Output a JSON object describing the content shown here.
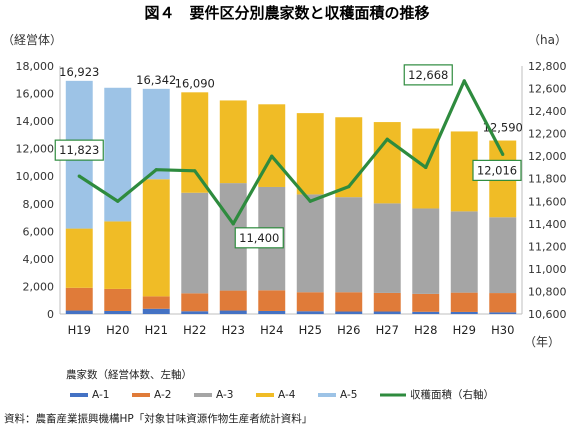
{
  "chart_data": {
    "type": "bar+line",
    "title": "図４　要件区分別農家数と収穫面積の推移",
    "y_left_unit": "（経営体）",
    "y_right_unit": "（ha）",
    "x_unit": "（年）",
    "legend_title": "農家数（経営体数、左軸）",
    "source": "資料：農畜産業振興機構HP「対象甘味資源作物生産者統計資料」",
    "categories": [
      "H19",
      "H20",
      "H21",
      "H22",
      "H23",
      "H24",
      "H25",
      "H26",
      "H27",
      "H28",
      "H29",
      "H30"
    ],
    "y_left": {
      "min": 0,
      "max": 18000,
      "step": 2000
    },
    "y_right": {
      "min": 10600,
      "max": 12800,
      "step": 200
    },
    "series": [
      {
        "name": "A-1",
        "color": "#4472c4",
        "values": [
          250,
          220,
          380,
          200,
          250,
          220,
          200,
          180,
          180,
          160,
          150,
          120
        ]
      },
      {
        "name": "A-2",
        "color": "#e07b39",
        "values": [
          1650,
          1600,
          900,
          1300,
          1450,
          1500,
          1380,
          1400,
          1350,
          1300,
          1400,
          1400
        ]
      },
      {
        "name": "A-3",
        "color": "#a5a5a5",
        "values": [
          0,
          0,
          0,
          7300,
          7800,
          7500,
          7100,
          6900,
          6500,
          6200,
          5900,
          5500
        ]
      },
      {
        "name": "A-4",
        "color": "#f0bc26",
        "values": [
          4300,
          4900,
          8500,
          7290,
          6000,
          6000,
          5900,
          5800,
          5900,
          5800,
          5800,
          5570
        ]
      },
      {
        "name": "A-5",
        "color": "#9dc3e6",
        "values": [
          10723,
          9700,
          6562,
          0,
          0,
          0,
          0,
          0,
          0,
          0,
          0,
          0
        ]
      }
    ],
    "bar_labels": [
      {
        "index": 0,
        "text": "16,923"
      },
      {
        "index": 2,
        "text": "16,342"
      },
      {
        "index": 3,
        "text": "16,090"
      },
      {
        "index": 11,
        "text": "12,590"
      }
    ],
    "line": {
      "name": "収穫面積（右軸）",
      "color": "#2e8b3e",
      "values": [
        11823,
        11600,
        11880,
        11870,
        11400,
        12000,
        11600,
        11730,
        12150,
        11900,
        12668,
        12016
      ]
    },
    "line_labels": [
      {
        "index": 0,
        "text": "11,823"
      },
      {
        "index": 4,
        "text": "11,400"
      },
      {
        "index": 10,
        "text": "12,668"
      },
      {
        "index": 11,
        "text": "12,016"
      }
    ]
  }
}
